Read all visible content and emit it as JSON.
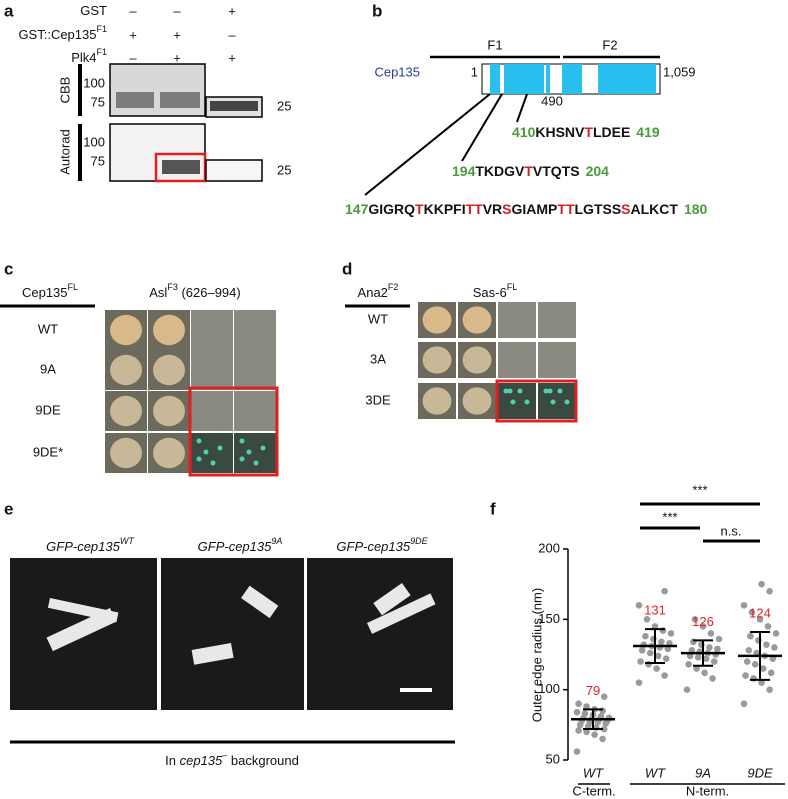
{
  "panel_a": {
    "label": "a",
    "rows": [
      {
        "text": "GST",
        "sup": null,
        "marks": [
          "–",
          "–",
          "+"
        ]
      },
      {
        "text": "GST::Cep135",
        "sup": "F1",
        "marks": [
          "+",
          "+",
          "–"
        ]
      },
      {
        "text": "Plk4",
        "sup": "F1",
        "marks": [
          "–",
          "+",
          "+"
        ]
      }
    ],
    "side_labels": [
      "CBB",
      "Autorad"
    ],
    "mw_left": [
      "100",
      "75"
    ],
    "mw_right": "25"
  },
  "panel_b": {
    "label": "b",
    "domains": [
      "F1",
      "F2"
    ],
    "protein": "Cep135",
    "start": "1",
    "end": "1,059",
    "boundary": "490",
    "sequences": [
      {
        "start": "410",
        "segments": [
          "KHSNV",
          "T",
          "LDEE"
        ],
        "end": "419"
      },
      {
        "start": "194",
        "segments": [
          "TKDGV",
          "T",
          "VTQTS"
        ],
        "end": "204"
      },
      {
        "start": "147",
        "segments": [
          "GIGRQ",
          "T",
          "KKPFI",
          "TT",
          "VR",
          "S",
          "GIAMP",
          "TT",
          "LGTSS",
          "S",
          "ALKCT"
        ],
        "end": "180"
      }
    ]
  },
  "panel_c": {
    "label": "c",
    "left_header": {
      "text": "Cep135",
      "sup": "FL"
    },
    "right_header": {
      "text": "Asl",
      "sup": "F3",
      "suffix": " (626–994)"
    },
    "rows": [
      "WT",
      "9A",
      "9DE",
      "9DE*"
    ]
  },
  "panel_d": {
    "label": "d",
    "left_header": {
      "text": "Ana2",
      "sup": "F2"
    },
    "right_header": {
      "text": "Sas-6",
      "sup": "FL"
    },
    "rows": [
      "WT",
      "3A",
      "3DE"
    ]
  },
  "panel_e": {
    "label": "e",
    "captions": [
      {
        "text": "GFP-cep135",
        "sup": "WT"
      },
      {
        "text": "GFP-cep135",
        "sup": "9A"
      },
      {
        "text": "GFP-cep135",
        "sup": "9DE"
      }
    ],
    "footer": {
      "before": "In ",
      "gene": "cep135",
      "sup": "–",
      "after": " background"
    }
  },
  "panel_f": {
    "label": "f"
  },
  "chart_data": {
    "type": "dot",
    "ylabel": "Outer edge radius (nm)",
    "ylim": [
      50,
      200
    ],
    "yticks": [
      50,
      100,
      150,
      200
    ],
    "mean_color": "#e02020",
    "point_color": "#9a9a9a",
    "groups": [
      {
        "name": "C-term.",
        "categories": [
          "WT"
        ],
        "means": [
          79
        ],
        "sd": [
          7
        ],
        "points": [
          [
            56,
            65,
            68,
            70,
            71,
            72,
            73,
            74,
            75,
            76,
            77,
            77,
            78,
            78,
            79,
            79,
            80,
            80,
            81,
            82,
            83,
            84,
            85,
            86,
            88,
            90,
            95
          ]
        ]
      },
      {
        "name": "N-term.",
        "categories": [
          "WT",
          "9A",
          "9DE"
        ],
        "means": [
          131,
          126,
          124
        ],
        "sd": [
          12,
          9,
          17
        ],
        "points": [
          [
            105,
            110,
            115,
            118,
            120,
            122,
            124,
            126,
            128,
            129,
            130,
            131,
            132,
            133,
            134,
            136,
            138,
            140,
            142,
            145,
            150,
            160,
            170
          ],
          [
            100,
            108,
            112,
            115,
            118,
            120,
            122,
            123,
            124,
            125,
            126,
            127,
            128,
            129,
            130,
            132,
            134,
            136,
            140,
            145,
            150
          ],
          [
            90,
            100,
            105,
            108,
            110,
            112,
            115,
            118,
            120,
            122,
            124,
            126,
            128,
            130,
            132,
            135,
            138,
            140,
            145,
            150,
            155,
            160,
            170,
            175
          ]
        ]
      }
    ],
    "comparisons": [
      "***",
      "***",
      "n.s."
    ]
  }
}
